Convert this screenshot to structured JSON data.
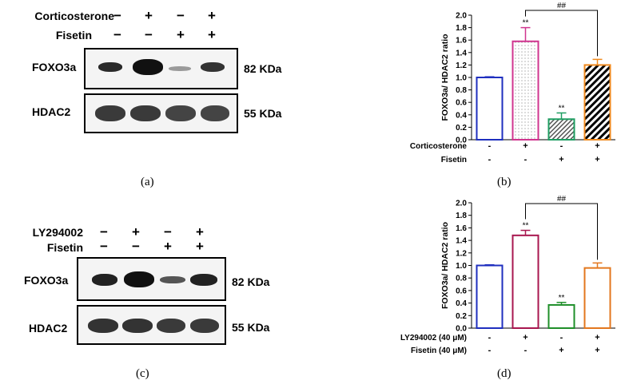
{
  "panels": {
    "a": {
      "label": "(a)",
      "treatments": [
        {
          "name": "Corticosterone",
          "signs": [
            "−",
            "+",
            "−",
            "+"
          ]
        },
        {
          "name": "Fisetin",
          "signs": [
            "−",
            "−",
            "+",
            "+"
          ]
        }
      ],
      "blots": [
        {
          "protein": "FOXO3a",
          "kda": "82 KDa"
        },
        {
          "protein": "HDAC2",
          "kda": "55 KDa"
        }
      ]
    },
    "b": {
      "label": "(b)"
    },
    "c": {
      "label": "(c)",
      "treatments": [
        {
          "name": "LY294002",
          "signs": [
            "−",
            "+",
            "−",
            "+"
          ]
        },
        {
          "name": "Fisetin",
          "signs": [
            "−",
            "−",
            "+",
            "+"
          ]
        }
      ],
      "blots": [
        {
          "protein": "FOXO3a",
          "kda": "82 KDa"
        },
        {
          "protein": "HDAC2",
          "kda": "55 KDa"
        }
      ]
    },
    "d": {
      "label": "(d)"
    }
  },
  "chart_data": [
    {
      "type": "bar",
      "ylabel": "FOXO3a/ HDAC2 ratio",
      "ylim": [
        0,
        2.0
      ],
      "yticks": [
        "0.0",
        "0.2",
        "0.4",
        "0.6",
        "0.8",
        "1.0",
        "1.2",
        "1.4",
        "1.6",
        "1.8",
        "2.0"
      ],
      "values": [
        1.0,
        1.58,
        0.33,
        1.2
      ],
      "errors": [
        0.01,
        0.22,
        0.1,
        0.09
      ],
      "bar_colors": [
        "#1f2fbf",
        "#d0358f",
        "#1f9e62",
        "#f08a1e"
      ],
      "bar_patterns": [
        "none",
        "dots",
        "hatch-light",
        "hatch-heavy"
      ],
      "significance": [
        "",
        "**",
        "**",
        ""
      ],
      "bracket": {
        "from": 1,
        "to": 3,
        "label": "##"
      },
      "treatments": [
        {
          "name": "Corticosterone",
          "signs": [
            "-",
            "+",
            "-",
            "+"
          ]
        },
        {
          "name": "Fisetin",
          "signs": [
            "-",
            "-",
            "+",
            "+"
          ]
        }
      ]
    },
    {
      "type": "bar",
      "ylabel": "FOXO3a/ HDAC2 ratio",
      "ylim": [
        0,
        2.0
      ],
      "yticks": [
        "0.0",
        "0.2",
        "0.4",
        "0.6",
        "0.8",
        "1.0",
        "1.2",
        "1.4",
        "1.6",
        "1.8",
        "2.0"
      ],
      "values": [
        1.0,
        1.48,
        0.37,
        0.96
      ],
      "errors": [
        0.01,
        0.08,
        0.04,
        0.08
      ],
      "bar_colors": [
        "#1f2fbf",
        "#a8174f",
        "#1f8f2a",
        "#e3771e"
      ],
      "bar_patterns": [
        "none",
        "none",
        "none",
        "none"
      ],
      "significance": [
        "",
        "**",
        "**",
        ""
      ],
      "bracket": {
        "from": 1,
        "to": 3,
        "label": "##"
      },
      "treatments": [
        {
          "name": "LY294002 (40 μM)",
          "signs": [
            "-",
            "+",
            "-",
            "+"
          ]
        },
        {
          "name": "Fisetin (40 μM)",
          "signs": [
            "-",
            "-",
            "+",
            "+"
          ]
        }
      ]
    }
  ]
}
